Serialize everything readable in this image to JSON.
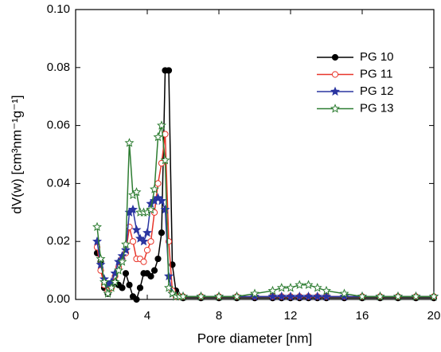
{
  "chart_data": {
    "type": "line",
    "xlabel": "Pore diameter [nm]",
    "ylabel": "dV(w) [cm³nm⁻¹g⁻¹]",
    "x": [
      1.2,
      1.4,
      1.6,
      1.8,
      2.0,
      2.2,
      2.4,
      2.6,
      2.8,
      3.0,
      3.2,
      3.4,
      3.6,
      3.8,
      4.0,
      4.2,
      4.4,
      4.6,
      4.8,
      5.0,
      5.2,
      5.4,
      5.6,
      5.8,
      6.0,
      7,
      8,
      9,
      10,
      11,
      11.5,
      12,
      12.5,
      13,
      13.5,
      14,
      15,
      16,
      17,
      18,
      19,
      20
    ],
    "xlim": [
      0,
      20
    ],
    "xticks": [
      0,
      4,
      8,
      12,
      16,
      20
    ],
    "ylim": [
      0,
      0.1
    ],
    "yticks": [
      {
        "value": 0,
        "label": "0.00"
      },
      {
        "value": 0.02,
        "label": "0.02"
      },
      {
        "value": 0.04,
        "label": "0.04"
      },
      {
        "value": 0.06,
        "label": "0.06"
      },
      {
        "value": 0.08,
        "label": "0.08"
      },
      {
        "value": 0.1,
        "label": "0.10"
      }
    ],
    "legend": "upper right",
    "series": [
      {
        "name": "PG 10",
        "color": "#000000",
        "marker": "circle",
        "filled": true,
        "values": [
          0.016,
          0.013,
          0.004,
          0.002,
          0.005,
          0.006,
          0.005,
          0.004,
          0.009,
          0.005,
          0.001,
          0,
          0.004,
          0.009,
          0.009,
          0.008,
          0.01,
          0.014,
          0.023,
          0.079,
          0.079,
          0.012,
          0.003,
          0.001,
          0.0005,
          0.0005,
          0.0005,
          0.0005,
          0.0005,
          0.0005,
          0.0005,
          0.0005,
          0.0005,
          0.0005,
          0.0005,
          0.0005,
          0.0005,
          0.0005,
          0.0005,
          0.0005,
          0.0005,
          0.0005
        ]
      },
      {
        "name": "PG 11",
        "color": "#e8352a",
        "marker": "circle",
        "filled": false,
        "values": [
          0.018,
          0.01,
          0.005,
          0.003,
          0.004,
          0.008,
          0.011,
          0.014,
          0.016,
          0.025,
          0.02,
          0.014,
          0.014,
          0.013,
          0.017,
          0.02,
          0.03,
          0.04,
          0.047,
          0.057,
          0.02,
          0.003,
          0.001,
          0.001,
          0.001,
          0.001,
          0.001,
          0.001,
          0.001,
          0.001,
          0.001,
          0.001,
          0.001,
          0.001,
          0.001,
          0.001,
          0.001,
          0.001,
          0.001,
          0.001,
          0.001,
          0.001
        ]
      },
      {
        "name": "PG 12",
        "color": "#2a35a0",
        "marker": "star",
        "filled": true,
        "values": [
          0.02,
          0.012,
          0.007,
          0.005,
          0.006,
          0.009,
          0.013,
          0.015,
          0.017,
          0.03,
          0.031,
          0.024,
          0.021,
          0.02,
          0.023,
          0.033,
          0.034,
          0.035,
          0.034,
          0.031,
          0.008,
          0.002,
          0.001,
          0.001,
          0.001,
          0.001,
          0.001,
          0.001,
          0.001,
          0.001,
          0.001,
          0.001,
          0.001,
          0.001,
          0.001,
          0.001,
          0.001,
          0.001,
          0.001,
          0.001,
          0.001,
          0.001
        ]
      },
      {
        "name": "PG 13",
        "color": "#2e7d32",
        "marker": "star",
        "filled": false,
        "values": [
          0.025,
          0.014,
          0.006,
          0.002,
          0.004,
          0.006,
          0.01,
          0.013,
          0.019,
          0.054,
          0.036,
          0.037,
          0.03,
          0.03,
          0.03,
          0.031,
          0.038,
          0.056,
          0.06,
          0.048,
          0.004,
          0.002,
          0.001,
          0.001,
          0.001,
          0.001,
          0.001,
          0.001,
          0.002,
          0.003,
          0.004,
          0.004,
          0.005,
          0.005,
          0.004,
          0.003,
          0.002,
          0.001,
          0.001,
          0.001,
          0.001,
          0.001
        ]
      }
    ]
  }
}
